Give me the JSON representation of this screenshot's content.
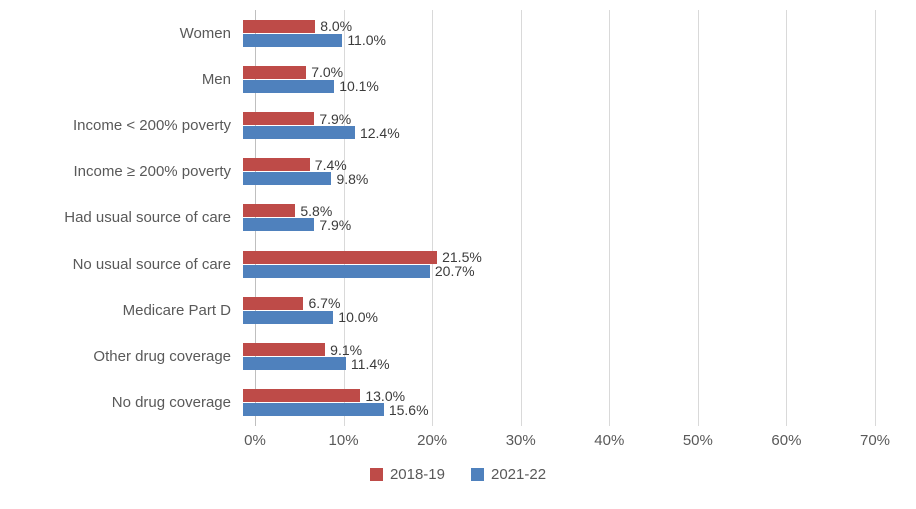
{
  "chart_data": {
    "type": "bar",
    "orientation": "horizontal",
    "title": "",
    "categories": [
      "Women",
      "Men",
      "Income < 200% poverty",
      "Income ≥ 200% poverty",
      "Had usual source of care",
      "No usual source of care",
      "Medicare Part D",
      "Other drug coverage",
      "No drug coverage"
    ],
    "series": [
      {
        "name": "2018-19",
        "color": "#be4b48",
        "values": [
          8.0,
          7.0,
          7.9,
          7.4,
          5.8,
          21.5,
          6.7,
          9.1,
          13.0
        ]
      },
      {
        "name": "2021-22",
        "color": "#4f81bd",
        "values": [
          11.0,
          10.1,
          12.4,
          9.8,
          7.9,
          20.7,
          10.0,
          11.4,
          15.6
        ]
      }
    ],
    "xlim": [
      0,
      70
    ],
    "x_ticks": [
      {
        "value": 0,
        "label": "0%"
      },
      {
        "value": 10,
        "label": "10%"
      },
      {
        "value": 20,
        "label": "20%"
      },
      {
        "value": 30,
        "label": "30%"
      },
      {
        "value": 40,
        "label": "40%"
      },
      {
        "value": 50,
        "label": "50%"
      },
      {
        "value": 60,
        "label": "60%"
      },
      {
        "value": 70,
        "label": "70%"
      }
    ],
    "value_suffix": "%",
    "grid": true,
    "legend_position": "bottom"
  }
}
